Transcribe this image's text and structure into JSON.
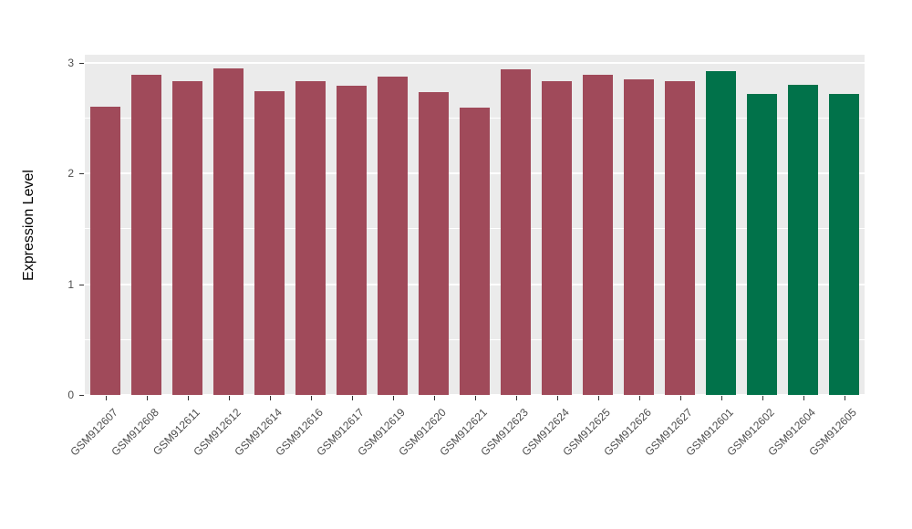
{
  "chart_data": {
    "type": "bar",
    "title": "",
    "xlabel": "",
    "ylabel": "Expression Level",
    "ylim": [
      0,
      3.07
    ],
    "yticks": [
      0,
      1,
      2,
      3
    ],
    "yticks_minor": [
      0.5,
      1.5,
      2.5
    ],
    "grid": true,
    "legend_position": "none",
    "panel_background": "#EBEBEB",
    "grid_color": "#ffffff",
    "categories": [
      "GSM912607",
      "GSM912608",
      "GSM912611",
      "GSM912612",
      "GSM912614",
      "GSM912616",
      "GSM912617",
      "GSM912619",
      "GSM912620",
      "GSM912621",
      "GSM912623",
      "GSM912624",
      "GSM912625",
      "GSM912626",
      "GSM912627",
      "GSM912601",
      "GSM912602",
      "GSM912604",
      "GSM912605"
    ],
    "values": [
      2.6,
      2.89,
      2.83,
      2.95,
      2.74,
      2.83,
      2.79,
      2.87,
      2.73,
      2.59,
      2.94,
      2.83,
      2.89,
      2.85,
      2.83,
      2.92,
      2.72,
      2.8,
      2.72
    ],
    "groups": [
      0,
      0,
      0,
      0,
      0,
      0,
      0,
      0,
      0,
      0,
      0,
      0,
      0,
      0,
      0,
      1,
      1,
      1,
      1
    ],
    "group_colors": [
      "#A04A5A",
      "#01724A"
    ]
  }
}
